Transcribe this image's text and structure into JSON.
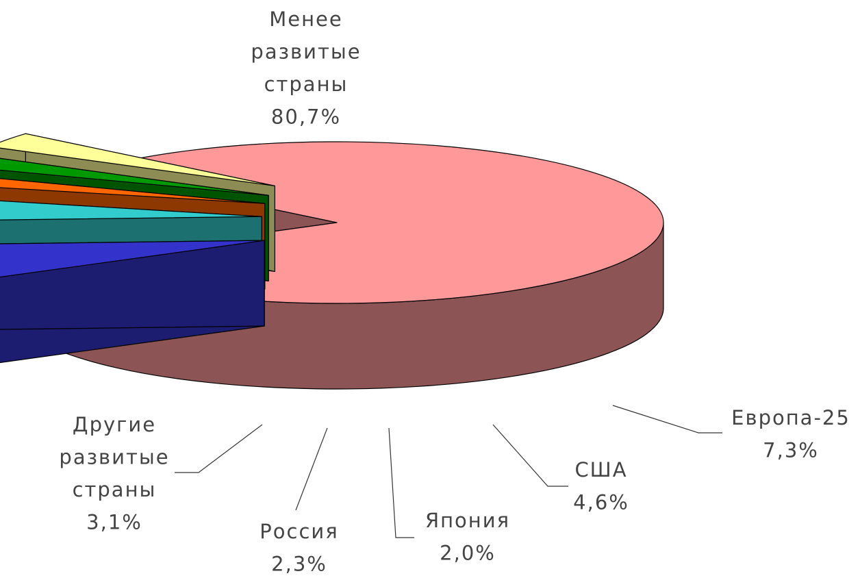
{
  "chart_data": {
    "type": "pie3d",
    "categories": [
      "Менее развитые страны",
      "Европа-25",
      "США",
      "Япония",
      "Россия",
      "Другие развитые страны"
    ],
    "values": [
      80.7,
      7.3,
      4.6,
      2.0,
      2.3,
      3.1
    ],
    "value_labels": [
      "80,7%",
      "7,3%",
      "4,6%",
      "2,0%",
      "2,3%",
      "3,1%"
    ],
    "colors": [
      "#ff9999",
      "#3333cc",
      "#33cccc",
      "#ff6600",
      "#009900",
      "#ffff99"
    ]
  }
}
